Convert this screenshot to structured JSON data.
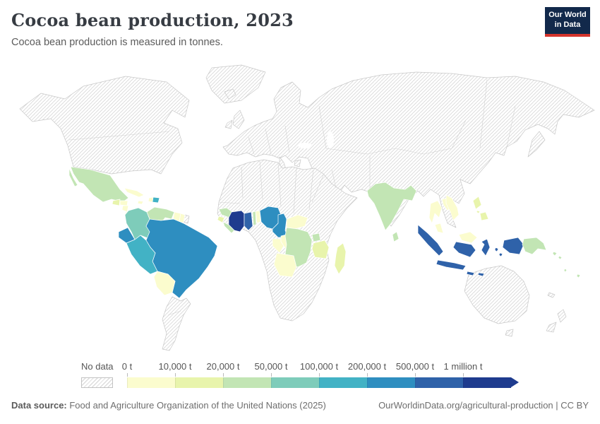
{
  "header": {
    "title": "Cocoa bean production, 2023",
    "subtitle": "Cocoa bean production is measured in tonnes.",
    "logo": {
      "line1": "Our World",
      "line2": "in Data",
      "bg_color": "#12294b",
      "accent_color": "#d4342c"
    }
  },
  "legend": {
    "no_data_label": "No data"
  },
  "footer": {
    "source_label": "Data source:",
    "source_text": " Food and Agriculture Organization of the United Nations (2025)",
    "credit": "OurWorldinData.org/agricultural-production | CC BY"
  },
  "chart_data": {
    "type": "heatmap",
    "subtype": "world-choropleth",
    "title": "Cocoa bean production, 2023",
    "unit": "tonnes",
    "legend_position": "bottom",
    "scale": {
      "ticks": [
        "0 t",
        "10,000 t",
        "20,000 t",
        "50,000 t",
        "100,000 t",
        "200,000 t",
        "500,000 t",
        "1 million t"
      ],
      "no_data": {
        "label": "No data",
        "pattern": "diagonal-hatch"
      },
      "bins": [
        {
          "label": "0 t – 10,000 t",
          "color": "#fbfcce"
        },
        {
          "label": "10,000 t – 20,000 t",
          "color": "#e8f4ac"
        },
        {
          "label": "20,000 t – 50,000 t",
          "color": "#c2e5b4"
        },
        {
          "label": "50,000 t – 100,000 t",
          "color": "#7eccba"
        },
        {
          "label": "100,000 t – 200,000 t",
          "color": "#42b2c5"
        },
        {
          "label": "200,000 t – 500,000 t",
          "color": "#2e8ec0"
        },
        {
          "label": "500,000 t – 1 million t",
          "color": "#2f62a9"
        },
        {
          "label": "> 1 million t",
          "color": "#1e3b8e"
        }
      ]
    },
    "countries": [
      {
        "name": "Côte d'Ivoire",
        "slug": "cote-divoire",
        "bin": 7
      },
      {
        "name": "Ghana",
        "slug": "ghana",
        "bin": 6
      },
      {
        "name": "Indonesia",
        "slug": "indonesia",
        "bin": 6
      },
      {
        "name": "Ecuador",
        "slug": "ecuador",
        "bin": 5
      },
      {
        "name": "Brazil",
        "slug": "brazil",
        "bin": 5
      },
      {
        "name": "Nigeria",
        "slug": "nigeria",
        "bin": 5
      },
      {
        "name": "Cameroon",
        "slug": "cameroon",
        "bin": 5
      },
      {
        "name": "Peru",
        "slug": "peru",
        "bin": 4
      },
      {
        "name": "Dominican Republic",
        "slug": "dominican-republic",
        "bin": 4
      },
      {
        "name": "Colombia",
        "slug": "colombia",
        "bin": 3
      },
      {
        "name": "Mexico",
        "slug": "mexico",
        "bin": 2
      },
      {
        "name": "Venezuela",
        "slug": "venezuela",
        "bin": 2
      },
      {
        "name": "India",
        "slug": "india",
        "bin": 2
      },
      {
        "name": "Sri Lanka",
        "slug": "sri-lanka",
        "bin": 2
      },
      {
        "name": "Papua New Guinea",
        "slug": "papua-new-guinea",
        "bin": 2
      },
      {
        "name": "Uganda",
        "slug": "uganda",
        "bin": 2
      },
      {
        "name": "Democratic Republic of Congo",
        "slug": "drc",
        "bin": 2
      },
      {
        "name": "Guinea",
        "slug": "guinea",
        "bin": 2
      },
      {
        "name": "Liberia",
        "slug": "liberia",
        "bin": 2
      },
      {
        "name": "Togo",
        "slug": "togo",
        "bin": 2
      },
      {
        "name": "Solomon Islands",
        "slug": "solomon-islands",
        "bin": 2
      },
      {
        "name": "Vanuatu",
        "slug": "vanuatu",
        "bin": 2
      },
      {
        "name": "Fiji",
        "slug": "fiji",
        "bin": 2
      },
      {
        "name": "Sierra Leone",
        "slug": "sierra-leone",
        "bin": 1
      },
      {
        "name": "Tanzania",
        "slug": "tanzania",
        "bin": 1
      },
      {
        "name": "Madagascar",
        "slug": "madagascar",
        "bin": 1
      },
      {
        "name": "Philippines",
        "slug": "philippines",
        "bin": 1
      },
      {
        "name": "Guatemala",
        "slug": "guatemala",
        "bin": 1
      },
      {
        "name": "Cuba",
        "slug": "cuba",
        "bin": 0
      },
      {
        "name": "Jamaica",
        "slug": "jamaica",
        "bin": 0
      },
      {
        "name": "Haiti",
        "slug": "haiti",
        "bin": 0
      },
      {
        "name": "Honduras",
        "slug": "honduras",
        "bin": 0
      },
      {
        "name": "Nicaragua",
        "slug": "nicaragua",
        "bin": 0
      },
      {
        "name": "Costa Rica",
        "slug": "costa-rica",
        "bin": 0
      },
      {
        "name": "Panama",
        "slug": "panama",
        "bin": 0
      },
      {
        "name": "Trinidad and Tobago",
        "slug": "trinidad",
        "bin": 0
      },
      {
        "name": "Bolivia",
        "slug": "bolivia",
        "bin": 0
      },
      {
        "name": "Guyana",
        "slug": "guyana",
        "bin": 0
      },
      {
        "name": "Suriname",
        "slug": "suriname",
        "bin": 0
      },
      {
        "name": "Benin",
        "slug": "benin",
        "bin": 0
      },
      {
        "name": "Central African Republic",
        "slug": "car",
        "bin": 0
      },
      {
        "name": "Equatorial Guinea",
        "slug": "gabon",
        "bin": 0
      },
      {
        "name": "Republic of Congo",
        "slug": "congo",
        "bin": 0
      },
      {
        "name": "Angola",
        "slug": "angola",
        "bin": 0
      },
      {
        "name": "Thailand",
        "slug": "thailand",
        "bin": 0
      },
      {
        "name": "Laos",
        "slug": "laos",
        "bin": 0
      },
      {
        "name": "Vietnam",
        "slug": "vietnam",
        "bin": 0
      },
      {
        "name": "Malaysia",
        "slug": "malaysia",
        "bin": 0
      }
    ]
  }
}
